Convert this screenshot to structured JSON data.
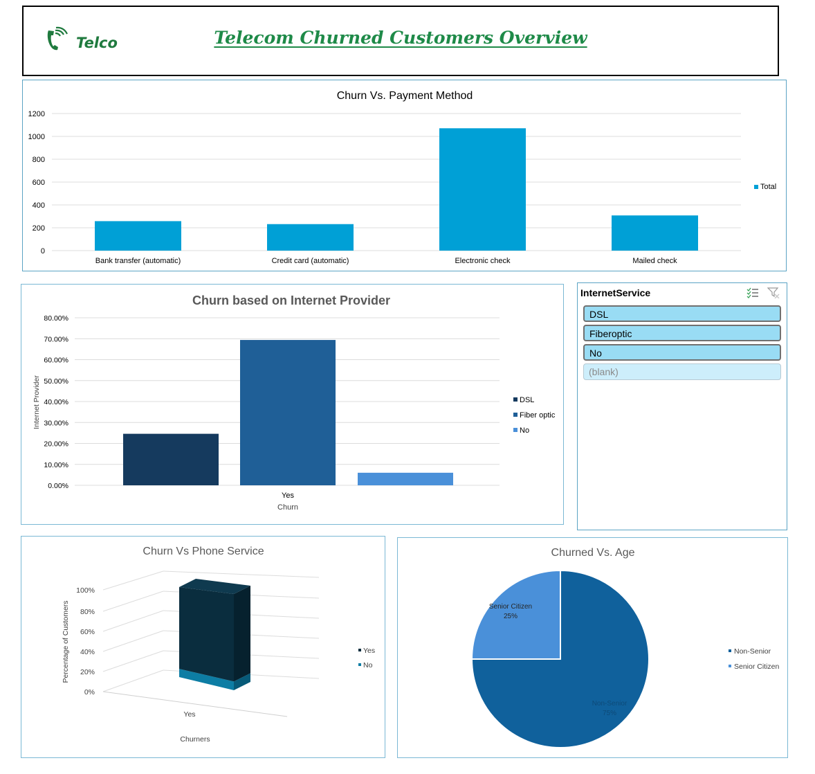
{
  "header": {
    "logo_text": "Telco",
    "title": "Telecom Churned Customers Overview"
  },
  "colors": {
    "payment_bar": "#00a0d6",
    "dsl": "#153a5e",
    "fiber": "#1f5f97",
    "no_internet": "#4a90d9",
    "phone_yes": "#0a2d3e",
    "phone_no": "#0d7da4",
    "non_senior": "#10619c",
    "senior": "#4a90d9"
  },
  "payment_chart": {
    "chart_data": {
      "type": "bar",
      "title": "Churn Vs. Payment Method",
      "categories": [
        "Bank transfer (automatic)",
        "Credit card (automatic)",
        "Electronic check",
        "Mailed check"
      ],
      "series": [
        {
          "name": "Total",
          "values": [
            258,
            232,
            1071,
            308
          ]
        }
      ],
      "ylim": [
        0,
        1200
      ],
      "yticks": [
        "0",
        "200",
        "400",
        "600",
        "800",
        "1000",
        "1200"
      ],
      "grid": true,
      "legend": "right"
    }
  },
  "internet_chart": {
    "chart_data": {
      "type": "bar",
      "title": "Churn based on Internet Provider",
      "ylabel": "Internet Provider",
      "xlabel": "Churn",
      "categories": [
        "Yes"
      ],
      "series": [
        {
          "name": "DSL",
          "values": [
            24.6
          ]
        },
        {
          "name": "Fiber optic",
          "values": [
            69.4
          ]
        },
        {
          "name": "No",
          "values": [
            6.0
          ]
        }
      ],
      "ylim": [
        0,
        80
      ],
      "yticks": [
        "0.00%",
        "10.00%",
        "20.00%",
        "30.00%",
        "40.00%",
        "50.00%",
        "60.00%",
        "70.00%",
        "80.00%"
      ],
      "grid": true,
      "legend": "right"
    }
  },
  "slicer": {
    "title": "InternetService",
    "items": [
      {
        "label": "DSL",
        "selected": true
      },
      {
        "label": "Fiberoptic",
        "selected": true
      },
      {
        "label": "No",
        "selected": true
      },
      {
        "label": "(blank)",
        "selected": false
      }
    ]
  },
  "phone_chart": {
    "chart_data": {
      "type": "bar",
      "title": "Churn Vs Phone Service",
      "ylabel": "Percentage of Customers",
      "xlabel": "Churners",
      "categories": [
        "Yes"
      ],
      "series": [
        {
          "name": "Yes",
          "values": [
            90.9
          ]
        },
        {
          "name": "No",
          "values": [
            9.1
          ]
        }
      ],
      "ylim": [
        0,
        100
      ],
      "yticks": [
        "0%",
        "20%",
        "40%",
        "60%",
        "80%",
        "100%"
      ],
      "stacked": true,
      "three_d": true,
      "legend": "right"
    }
  },
  "age_chart": {
    "chart_data": {
      "type": "pie",
      "title": "Churned Vs. Age",
      "categories": [
        "Non-Senior",
        "Senior Citizen"
      ],
      "values": [
        75,
        25
      ],
      "data_labels": [
        "Non-Senior 75%",
        "Senior Citizen 25%"
      ],
      "legend": "right"
    }
  }
}
